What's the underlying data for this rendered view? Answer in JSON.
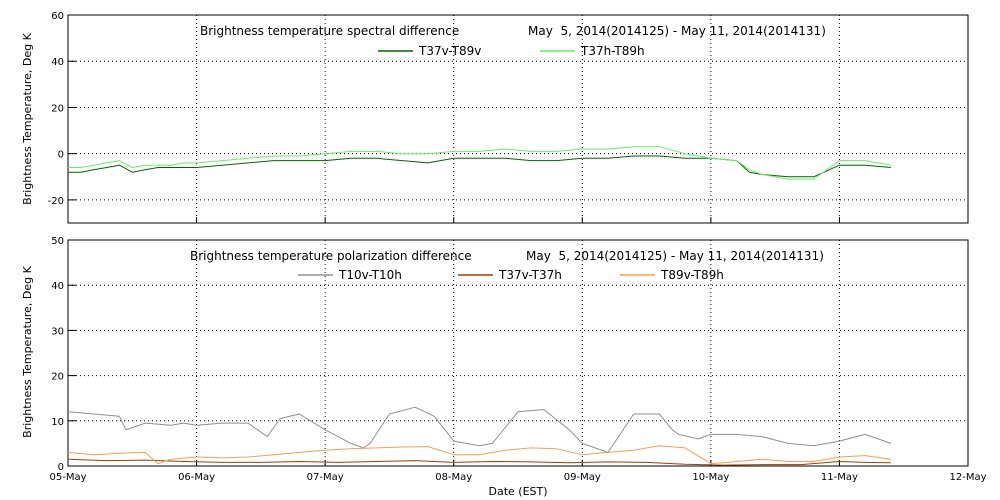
{
  "chart_data": [
    {
      "type": "line",
      "title": "Brightness temperature spectral difference",
      "date_range": "May  5, 2014(2014125) - May 11, 2014(2014131)",
      "ylabel": "Brightness Temperature, Deg K",
      "xlabel": "",
      "ylim": [
        -30,
        60
      ],
      "yticks": [
        -20,
        0,
        20,
        40,
        60
      ],
      "xlim": [
        0,
        7
      ],
      "grid": true,
      "series": [
        {
          "name": "T37v-T89v",
          "color": "#006400",
          "x": [
            0.0,
            0.1,
            0.2,
            0.3,
            0.4,
            0.5,
            0.6,
            0.7,
            0.8,
            0.9,
            1.0,
            1.2,
            1.4,
            1.6,
            1.8,
            2.0,
            2.2,
            2.4,
            2.6,
            2.8,
            3.0,
            3.2,
            3.4,
            3.6,
            3.8,
            4.0,
            4.2,
            4.4,
            4.6,
            4.8,
            5.0,
            5.2,
            5.3,
            5.4,
            5.6,
            5.8,
            6.0,
            6.2,
            6.4
          ],
          "values": [
            -8,
            -8,
            -7,
            -6,
            -5,
            -8,
            -7,
            -6,
            -6,
            -6,
            -6,
            -5,
            -4,
            -3,
            -3,
            -3,
            -2,
            -2,
            -3,
            -4,
            -2,
            -2,
            -2,
            -3,
            -3,
            -2,
            -2,
            -1,
            -1,
            -2,
            -2,
            -3,
            -8,
            -9,
            -10,
            -10,
            -5,
            -5,
            -6
          ]
        },
        {
          "name": "T37h-T89h",
          "color": "#66ee66",
          "x": [
            0.0,
            0.1,
            0.2,
            0.3,
            0.4,
            0.5,
            0.6,
            0.7,
            0.8,
            0.9,
            1.0,
            1.2,
            1.4,
            1.6,
            1.8,
            2.0,
            2.2,
            2.4,
            2.6,
            2.8,
            3.0,
            3.2,
            3.4,
            3.6,
            3.8,
            4.0,
            4.2,
            4.4,
            4.6,
            4.8,
            5.0,
            5.2,
            5.3,
            5.4,
            5.6,
            5.8,
            6.0,
            6.2,
            6.4
          ],
          "values": [
            -6,
            -6,
            -5,
            -4,
            -3,
            -6,
            -5,
            -5,
            -5,
            -4,
            -4,
            -3,
            -2,
            -1,
            -1,
            0,
            1,
            1,
            0,
            0,
            1,
            1,
            2,
            1,
            1,
            2,
            2,
            3,
            3,
            0,
            -2,
            -3,
            -7,
            -9,
            -11,
            -11,
            -3,
            -3,
            -5
          ]
        }
      ]
    },
    {
      "type": "line",
      "title": "Brightness temperature polarization difference",
      "date_range": "May  5, 2014(2014125) - May 11, 2014(2014131)",
      "ylabel": "Brightness Temperature, Deg K",
      "xlabel": "Date (EST)",
      "ylim": [
        0,
        50
      ],
      "yticks": [
        0,
        10,
        20,
        30,
        40,
        50
      ],
      "xlim": [
        0,
        7
      ],
      "categories": [
        "05-May",
        "06-May",
        "07-May",
        "08-May",
        "09-May",
        "10-May",
        "11-May",
        "12-May"
      ],
      "grid": true,
      "series": [
        {
          "name": "T10v-T10h",
          "color": "#909090",
          "x": [
            0.0,
            0.2,
            0.4,
            0.45,
            0.6,
            0.8,
            0.9,
            1.0,
            1.2,
            1.4,
            1.55,
            1.65,
            1.8,
            2.0,
            2.2,
            2.3,
            2.35,
            2.5,
            2.7,
            2.85,
            3.0,
            3.2,
            3.3,
            3.5,
            3.7,
            3.9,
            4.0,
            4.2,
            4.4,
            4.6,
            4.7,
            4.75,
            4.9,
            5.0,
            5.2,
            5.4,
            5.6,
            5.8,
            6.0,
            6.2,
            6.4
          ],
          "values": [
            12,
            11.5,
            11,
            8,
            9.5,
            9,
            9.5,
            9,
            9.5,
            9.5,
            6.5,
            10.5,
            11.5,
            8,
            5,
            4,
            5,
            11.5,
            13,
            11,
            5.5,
            4.5,
            5,
            12,
            12.5,
            8,
            5,
            3,
            11.5,
            11.5,
            8,
            7,
            6,
            7,
            7,
            6.5,
            5,
            4.5,
            5.5,
            7,
            5
          ]
        },
        {
          "name": "T37v-T37h",
          "color": "#a04000",
          "x": [
            0.0,
            0.3,
            0.6,
            0.9,
            1.2,
            1.5,
            1.8,
            2.1,
            2.4,
            2.7,
            3.0,
            3.3,
            3.6,
            3.9,
            4.2,
            4.5,
            4.8,
            5.1,
            5.4,
            5.7,
            6.0,
            6.2,
            6.4
          ],
          "values": [
            1.5,
            1.2,
            1.3,
            1.0,
            0.8,
            0.8,
            1.0,
            0.8,
            1.0,
            1.2,
            0.8,
            1.0,
            0.9,
            0.7,
            0.9,
            0.8,
            0.4,
            0.2,
            0.3,
            0.3,
            1.0,
            0.8,
            0.7
          ]
        },
        {
          "name": "T89v-T89h",
          "color": "#f5a050",
          "x": [
            0.0,
            0.2,
            0.4,
            0.6,
            0.7,
            0.8,
            1.0,
            1.2,
            1.4,
            1.6,
            1.8,
            2.0,
            2.2,
            2.4,
            2.6,
            2.8,
            3.0,
            3.2,
            3.4,
            3.6,
            3.8,
            4.0,
            4.2,
            4.4,
            4.6,
            4.8,
            5.0,
            5.2,
            5.4,
            5.6,
            5.8,
            6.0,
            6.2,
            6.4
          ],
          "values": [
            3,
            2.5,
            2.8,
            3,
            0.5,
            1.5,
            2,
            1.8,
            2,
            2.5,
            3,
            3.5,
            3.8,
            4,
            4.2,
            4.3,
            2.5,
            2.5,
            3.5,
            4,
            3.8,
            2.5,
            3,
            3.5,
            4.5,
            4,
            0.5,
            1,
            1.5,
            1,
            1,
            2,
            2.3,
            1.5
          ]
        }
      ]
    }
  ]
}
